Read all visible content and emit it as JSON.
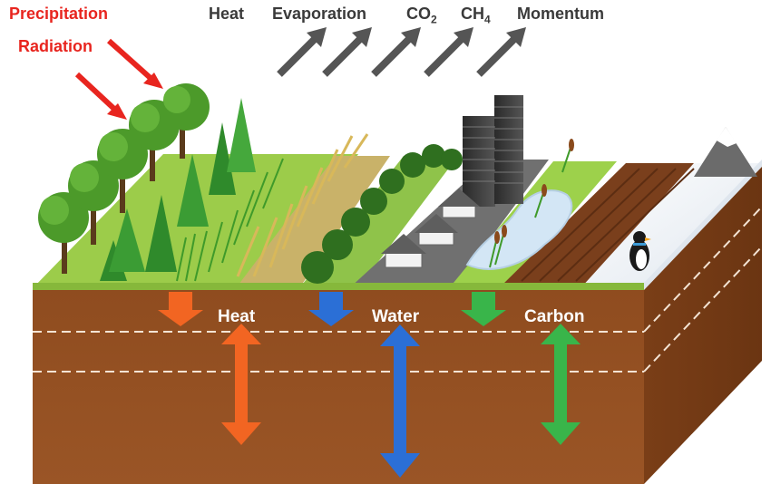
{
  "inputs": {
    "precipitation": "Precipitation",
    "radiation": "Radiation",
    "color": "#e8251f"
  },
  "fluxes": {
    "heat": "Heat",
    "evaporation": "Evaporation",
    "co2_main": "CO",
    "co2_sub": "2",
    "ch4_main": "CH",
    "ch4_sub": "4",
    "momentum": "Momentum",
    "arrow_color": "#555555"
  },
  "soil_exchange": {
    "heat": "Heat",
    "water": "Water",
    "carbon": "Carbon",
    "heat_color": "#f26522",
    "water_color": "#2b6fd6",
    "carbon_color": "#39b54a"
  },
  "land_cover": [
    "forest",
    "conifer-forest",
    "grassland",
    "cropland",
    "shrubland",
    "urban",
    "wetland",
    "bare-soil",
    "snow-ice"
  ],
  "colors": {
    "soil": "#8b4a1f",
    "grass_top": "#9ccc4a",
    "road": "#707070"
  }
}
